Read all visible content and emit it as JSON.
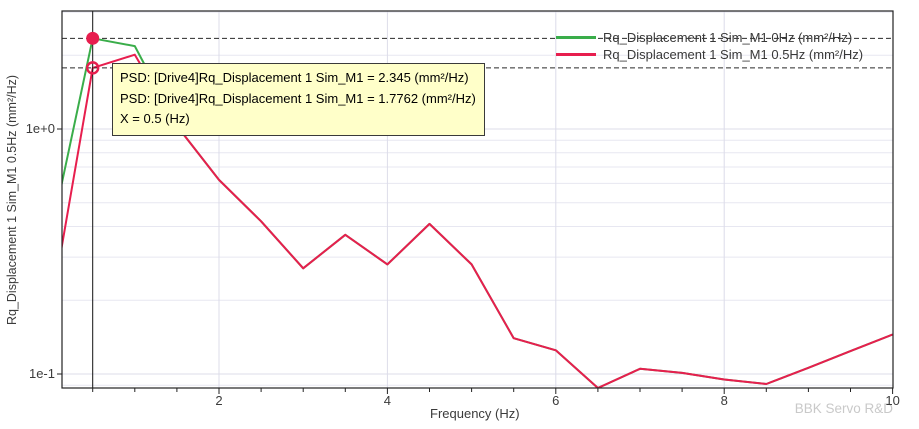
{
  "watermark": "BBK Servo R&D",
  "tooltip": {
    "line1": "PSD: [Drive4]Rq_Displacement 1 Sim_M1 = 2.345 (mm²/Hz)",
    "line2": "PSD: [Drive4]Rq_Displacement 1 Sim_M1 = 1.7762 (mm²/Hz)",
    "line3": "X = 0.5 (Hz)"
  },
  "legend": {
    "items": [
      {
        "label": "Rq_Displacement 1 Sim_M1 0Hz (mm²/Hz)",
        "color": "#3aad4a"
      },
      {
        "label": "Rq_Displacement 1 Sim_M1 0.5Hz (mm²/Hz)",
        "color": "#e71e4e"
      }
    ]
  },
  "axes": {
    "xlabel": "Frequency (Hz)",
    "ylabel": "Rq_Displacement 1 Sim_M1 0.5Hz (mm²/Hz)",
    "x_tick_values": [
      2,
      4,
      6,
      8,
      10
    ],
    "y_ticks": [
      {
        "label": "1e+0",
        "value": 1.0
      },
      {
        "label": "1e-1",
        "value": 0.1
      }
    ]
  },
  "chart_data": {
    "type": "line",
    "xlabel": "Frequency (Hz)",
    "ylabel": "Rq_Displacement 1 Sim_M1 0.5Hz (mm²/Hz)",
    "x_scale": "linear",
    "y_scale": "log",
    "xlim": [
      0.14,
      10
    ],
    "ylim": [
      0.088,
      3.1
    ],
    "grid": true,
    "legend_position": "top-right",
    "x": [
      0.1,
      0.5,
      1.0,
      1.5,
      2.0,
      2.5,
      3.0,
      3.5,
      4.0,
      4.5,
      5.0,
      5.5,
      6.0,
      6.5,
      7.0,
      7.5,
      8.0,
      8.5,
      9.0,
      9.5,
      10.0
    ],
    "series": [
      {
        "name": "Rq_Displacement 1 Sim_M1 0Hz (mm²/Hz)",
        "color": "#3aad4a",
        "values": [
          0.53,
          2.345,
          2.18,
          1.03,
          0.62,
          0.42,
          0.27,
          0.37,
          0.28,
          0.41,
          0.28,
          0.14,
          0.125,
          0.087,
          0.105,
          0.101,
          0.095,
          0.091,
          0.106,
          0.124,
          0.145
        ]
      },
      {
        "name": "Rq_Displacement 1 Sim_M1 0.5Hz (mm²/Hz)",
        "color": "#e71e4e",
        "values": [
          0.285,
          1.7762,
          2.01,
          1.03,
          0.62,
          0.42,
          0.27,
          0.37,
          0.28,
          0.41,
          0.28,
          0.14,
          0.125,
          0.087,
          0.105,
          0.101,
          0.095,
          0.091,
          0.106,
          0.124,
          0.145
        ]
      }
    ],
    "cursor_x": 0.5,
    "dashed_levels": [
      2.345,
      1.7762
    ],
    "markers": [
      {
        "x": 0.5,
        "value": 2.345,
        "style": "filled",
        "color": "#e71e4e"
      },
      {
        "x": 0.5,
        "value": 1.7762,
        "style": "open",
        "color": "#e71e4e"
      }
    ],
    "minor_h_gridlines": [
      3,
      2,
      0.9,
      0.8,
      0.7,
      0.6,
      0.5,
      0.4,
      0.3,
      0.2,
      0.09
    ],
    "major_v_gridlines": [
      2,
      4,
      6,
      8
    ]
  }
}
